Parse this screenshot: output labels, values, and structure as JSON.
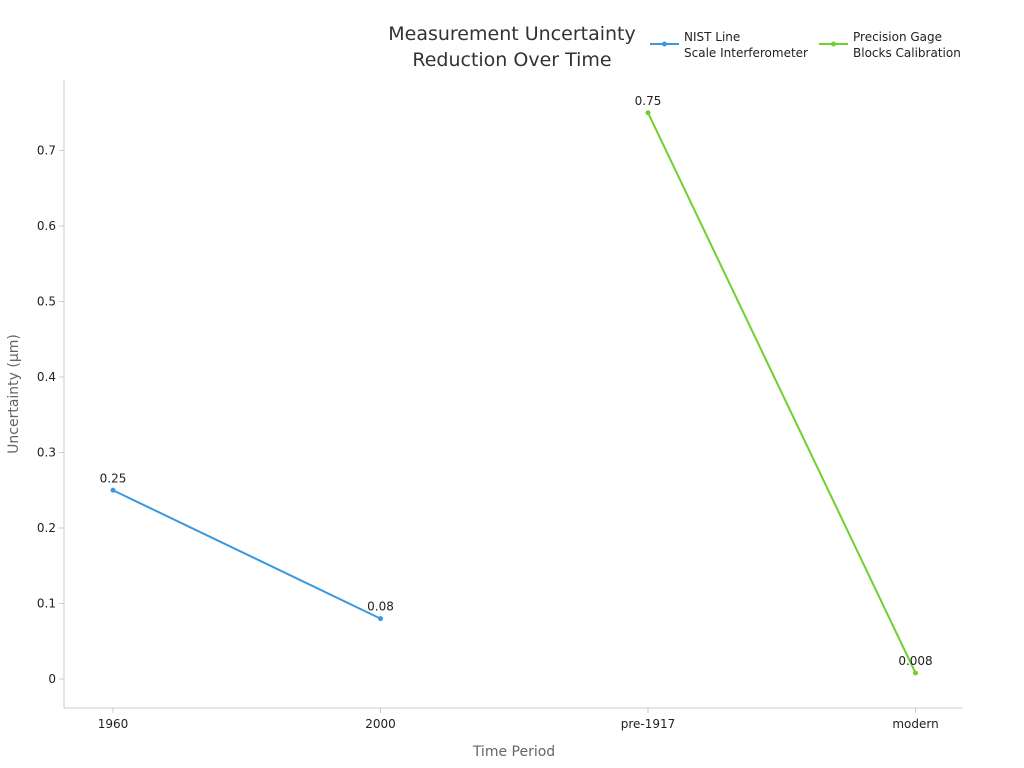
{
  "chart_data": {
    "type": "line",
    "title_lines": [
      "Measurement Uncertainty",
      "Reduction Over Time"
    ],
    "xlabel": "Time Period",
    "ylabel": "Uncertainty (µm)",
    "categories": [
      "1960",
      "2000",
      "pre-1917",
      "modern"
    ],
    "ylim": [
      -0.04,
      0.79
    ],
    "yticks": [
      0,
      0.1,
      0.2,
      0.3,
      0.4,
      0.5,
      0.6,
      0.7
    ],
    "grid": false,
    "legend_position": "top-right",
    "series": [
      {
        "name_lines": [
          "NIST Line",
          "Scale Interferometer"
        ],
        "color": "#3a98e0",
        "points": [
          {
            "category": "1960",
            "value": 0.25,
            "label": "0.25"
          },
          {
            "category": "2000",
            "value": 0.08,
            "label": "0.08"
          }
        ]
      },
      {
        "name_lines": [
          "Precision Gage",
          "Blocks Calibration"
        ],
        "color": "#6fd02f",
        "points": [
          {
            "category": "pre-1917",
            "value": 0.75,
            "label": "0.75"
          },
          {
            "category": "modern",
            "value": 0.008,
            "label": "0.008"
          }
        ]
      }
    ]
  }
}
